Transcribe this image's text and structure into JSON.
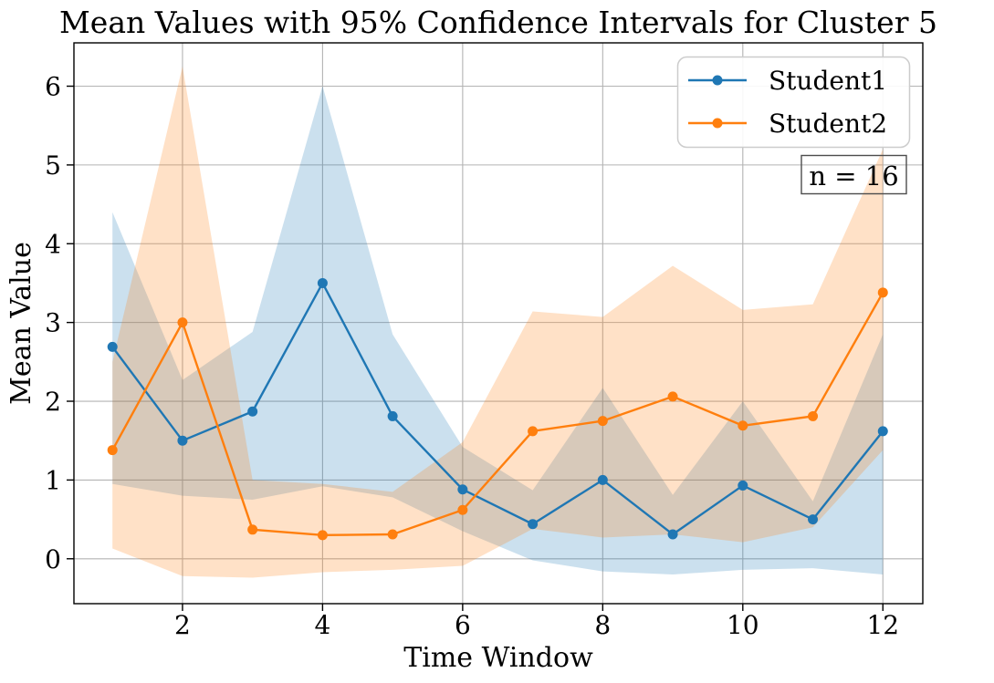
{
  "chart_data": {
    "type": "line",
    "title": "Mean Values with 95% Confidence Intervals for Cluster 5",
    "xlabel": "Time Window",
    "ylabel": "Mean Value",
    "x": [
      1,
      2,
      3,
      4,
      5,
      6,
      7,
      8,
      9,
      10,
      11,
      12
    ],
    "series": [
      {
        "name": "Student1",
        "color": "#1f77b4",
        "values": [
          2.69,
          1.5,
          1.87,
          3.5,
          1.81,
          0.88,
          0.44,
          1.0,
          0.31,
          0.93,
          0.5,
          1.62
        ],
        "ci_upper": [
          4.4,
          2.27,
          2.88,
          6.0,
          2.85,
          1.42,
          0.87,
          2.17,
          0.81,
          2.0,
          0.73,
          2.85
        ],
        "ci_lower": [
          0.95,
          0.8,
          0.75,
          0.92,
          0.78,
          0.35,
          -0.02,
          -0.16,
          -0.2,
          -0.14,
          -0.12,
          -0.2
        ]
      },
      {
        "name": "Student2",
        "color": "#ff7f0e",
        "values": [
          1.38,
          3.0,
          0.37,
          0.3,
          0.31,
          0.62,
          1.62,
          1.75,
          2.06,
          1.69,
          1.81,
          3.38
        ],
        "ci_upper": [
          2.5,
          6.25,
          1.0,
          0.95,
          0.85,
          1.48,
          3.14,
          3.07,
          3.72,
          3.16,
          3.23,
          5.2
        ],
        "ci_lower": [
          0.13,
          -0.22,
          -0.24,
          -0.17,
          -0.14,
          -0.09,
          0.38,
          0.27,
          0.31,
          0.21,
          0.4,
          1.38
        ]
      }
    ],
    "xticks": [
      2,
      4,
      6,
      8,
      10,
      12
    ],
    "yticks": [
      0,
      1,
      2,
      3,
      4,
      5,
      6
    ],
    "xlim": [
      0.45,
      12.57
    ],
    "ylim": [
      -0.57,
      6.55
    ],
    "grid": true,
    "grid_color": "#b3b3b3",
    "band_alpha": 0.23,
    "legend": {
      "position": "upper right",
      "entries": [
        "Student1",
        "Student2"
      ]
    },
    "annotation": {
      "text": "n = 16"
    }
  }
}
